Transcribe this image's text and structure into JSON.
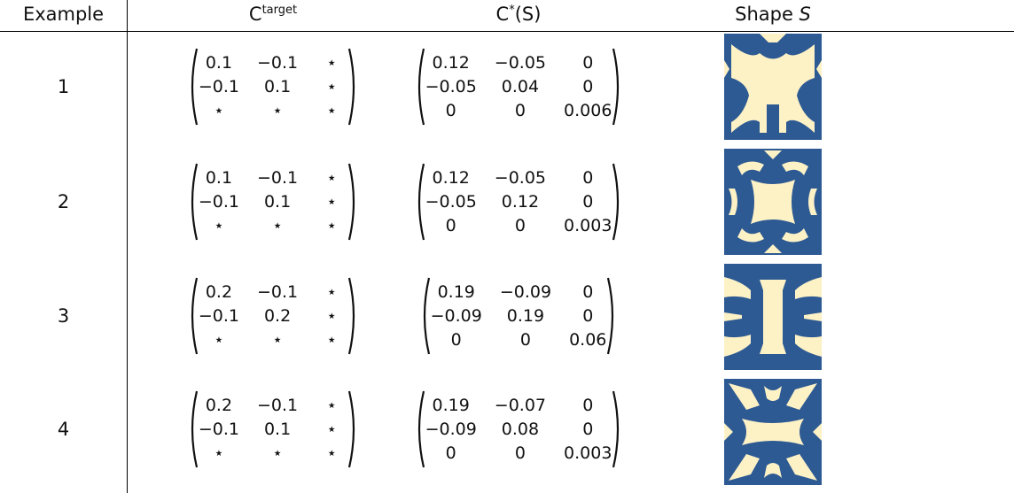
{
  "header": {
    "example": "Example",
    "target": {
      "main": "C",
      "sup": "target"
    },
    "result": {
      "main": "C",
      "sup": "*",
      "rest": "(S)"
    },
    "shape": {
      "main": "Shape ",
      "var": "S"
    }
  },
  "rows": [
    {
      "example": "1",
      "target": [
        [
          "0.1",
          "−0.1",
          "⋆"
        ],
        [
          "−0.1",
          "0.1",
          "⋆"
        ],
        [
          "⋆",
          "⋆",
          "⋆"
        ]
      ],
      "result": [
        [
          "0.12",
          "−0.05",
          "0"
        ],
        [
          "−0.05",
          "0.04",
          "0"
        ],
        [
          "0",
          "0",
          "0.006"
        ]
      ]
    },
    {
      "example": "2",
      "target": [
        [
          "0.1",
          "−0.1",
          "⋆"
        ],
        [
          "−0.1",
          "0.1",
          "⋆"
        ],
        [
          "⋆",
          "⋆",
          "⋆"
        ]
      ],
      "result": [
        [
          "0.12",
          "−0.05",
          "0"
        ],
        [
          "−0.05",
          "0.12",
          "0"
        ],
        [
          "0",
          "0",
          "0.003"
        ]
      ]
    },
    {
      "example": "3",
      "target": [
        [
          "0.2",
          "−0.1",
          "⋆"
        ],
        [
          "−0.1",
          "0.2",
          "⋆"
        ],
        [
          "⋆",
          "⋆",
          "⋆"
        ]
      ],
      "result": [
        [
          "0.19",
          "−0.09",
          "0"
        ],
        [
          "−0.09",
          "0.19",
          "0"
        ],
        [
          "0",
          "0",
          "0.06"
        ]
      ]
    },
    {
      "example": "4",
      "target": [
        [
          "0.2",
          "−0.1",
          "⋆"
        ],
        [
          "−0.1",
          "0.1",
          "⋆"
        ],
        [
          "⋆",
          "⋆",
          "⋆"
        ]
      ],
      "result": [
        [
          "0.19",
          "−0.07",
          "0"
        ],
        [
          "−0.09",
          "0.08",
          "0"
        ],
        [
          "0",
          "0",
          "0.003"
        ]
      ]
    }
  ]
}
